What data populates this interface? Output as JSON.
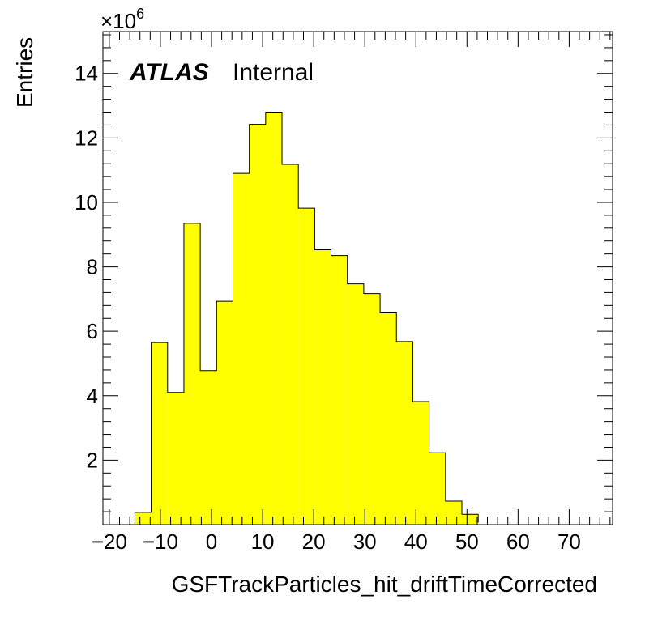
{
  "chart_data": {
    "type": "histogram",
    "xlabel": "GSFTrackParticles_hit_driftTimeCorrected",
    "ylabel": "Entries",
    "y_multiplier": "×10",
    "y_multiplier_exponent": "6",
    "xlim": [
      -21.25,
      78.5
    ],
    "ylim": [
      0,
      15.3
    ],
    "x_ticks": [
      -20,
      -10,
      0,
      10,
      20,
      30,
      40,
      50,
      60,
      70
    ],
    "x_tick_labels": [
      "−20",
      "−10",
      "0",
      "10",
      "20",
      "30",
      "40",
      "50",
      "60",
      "70"
    ],
    "y_ticks": [
      2,
      4,
      6,
      8,
      10,
      12,
      14
    ],
    "y_tick_labels": [
      "2",
      "4",
      "6",
      "8",
      "10",
      "12",
      "14"
    ],
    "bin_edges": [
      -15.0,
      -11.8,
      -8.6,
      -5.4,
      -2.2,
      1.0,
      4.2,
      7.4,
      10.6,
      13.8,
      17.0,
      20.2,
      23.4,
      26.6,
      29.8,
      33.0,
      36.2,
      39.4,
      42.6,
      45.8,
      49.0,
      52.2
    ],
    "values": [
      0.38,
      5.65,
      4.1,
      9.35,
      4.78,
      6.93,
      10.9,
      12.42,
      12.8,
      11.18,
      9.82,
      8.53,
      8.35,
      7.47,
      7.17,
      6.57,
      5.68,
      3.82,
      2.23,
      0.73,
      0.32,
      0.06
    ],
    "fill_color": "#ffff00",
    "line_color": "#000000",
    "grid": false,
    "legend": "none"
  },
  "label": {
    "experiment": "ATLAS",
    "status": "Internal"
  }
}
